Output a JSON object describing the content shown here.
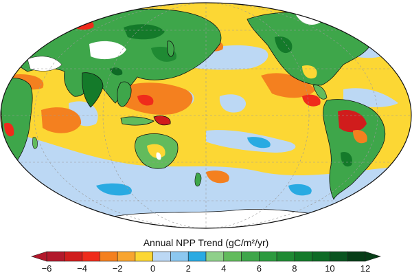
{
  "map": {
    "projection": "mollweide",
    "central_meridian": "pacific-centered",
    "graticule": "dashed"
  },
  "legend": {
    "title": "Annual NPP Trend (gC/m²/yr)",
    "tick_labels": [
      "−6",
      "−4",
      "−2",
      "0",
      "2",
      "4",
      "6",
      "8",
      "10",
      "12"
    ],
    "range": [
      -6,
      12
    ],
    "bins": [
      {
        "from": -6,
        "to": -5,
        "color": "#b2182b"
      },
      {
        "from": -5,
        "to": -4,
        "color": "#d01c1c"
      },
      {
        "from": -4,
        "to": -3,
        "color": "#ef2b1b"
      },
      {
        "from": -3,
        "to": -2,
        "color": "#f4801f"
      },
      {
        "from": -2,
        "to": -1,
        "color": "#f8a530"
      },
      {
        "from": -1,
        "to": 0,
        "color": "#fcd734"
      },
      {
        "from": 0,
        "to": 1,
        "color": "#bcd8f4"
      },
      {
        "from": 1,
        "to": 2,
        "color": "#8cc8f0"
      },
      {
        "from": 2,
        "to": 3,
        "color": "#29aae2"
      },
      {
        "from": 3,
        "to": 4,
        "color": "#8fd08a"
      },
      {
        "from": 4,
        "to": 5,
        "color": "#62bb5c"
      },
      {
        "from": 5,
        "to": 6,
        "color": "#3ea64a"
      },
      {
        "from": 6,
        "to": 7,
        "color": "#2c9a3e"
      },
      {
        "from": 7,
        "to": 8,
        "color": "#1f8a33"
      },
      {
        "from": 8,
        "to": 9,
        "color": "#147a2a"
      },
      {
        "from": 9,
        "to": 10,
        "color": "#0e6a25"
      },
      {
        "from": 10,
        "to": 11,
        "color": "#0a5420"
      },
      {
        "from": 11,
        "to": 12,
        "color": "#073d17"
      }
    ],
    "extends": "both"
  },
  "colors": {
    "ocean_dominant": "#fcd734",
    "ocean_increase": "#bcd8f4",
    "ocean_decrease": "#f4801f",
    "land_greening": "#3ea64a",
    "ice_nodata": "#ffffff",
    "coastline": "#111111"
  }
}
